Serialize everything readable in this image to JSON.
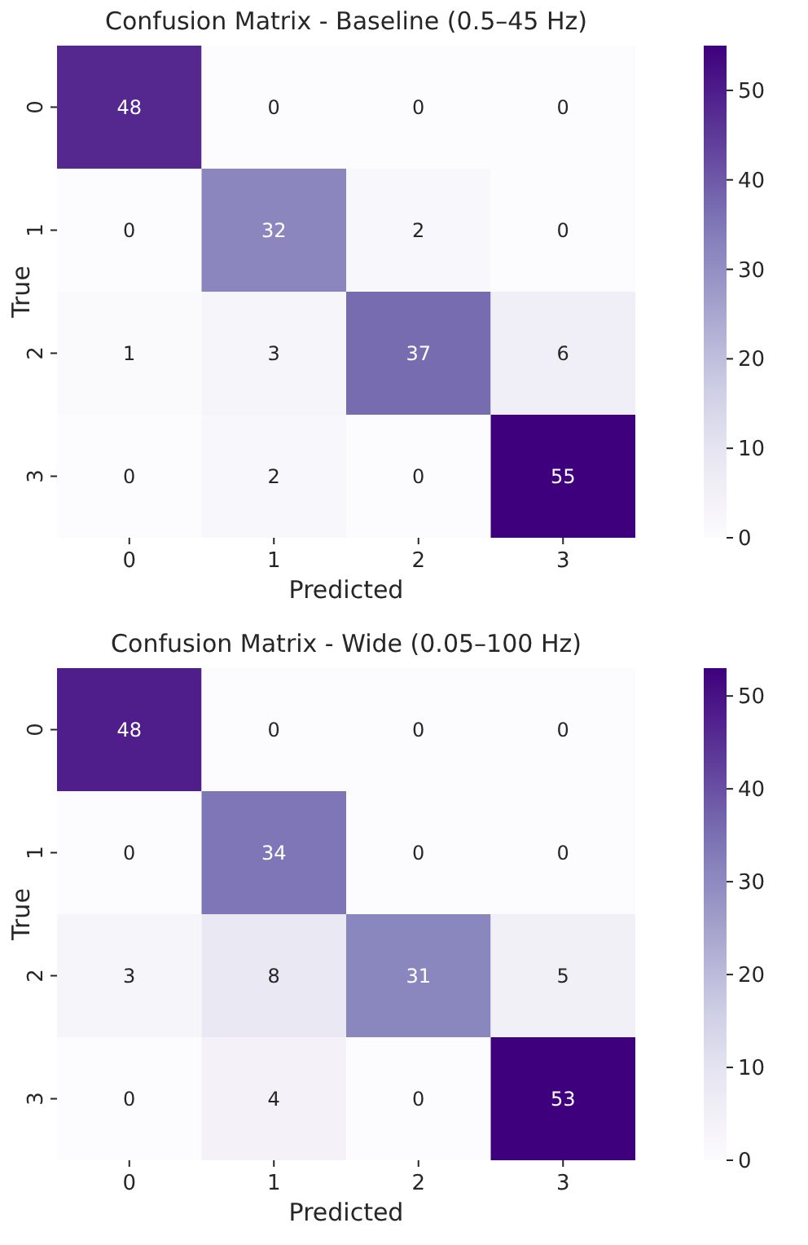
{
  "chart_data": [
    {
      "type": "heatmap",
      "title": "Confusion Matrix - Baseline (0.5–45 Hz)",
      "xlabel": "Predicted",
      "ylabel": "True",
      "categories": [
        "0",
        "1",
        "2",
        "3"
      ],
      "y_categories": [
        "0",
        "1",
        "2",
        "3"
      ],
      "cells": [
        [
          48,
          0,
          0,
          0
        ],
        [
          0,
          32,
          2,
          0
        ],
        [
          1,
          3,
          37,
          6
        ],
        [
          0,
          2,
          0,
          55
        ]
      ],
      "clim": [
        0,
        55
      ],
      "cticks": [
        0,
        10,
        20,
        30,
        40,
        50
      ],
      "data_labels": true
    },
    {
      "type": "heatmap",
      "title": "Confusion Matrix - Wide (0.05–100 Hz)",
      "xlabel": "Predicted",
      "ylabel": "True",
      "categories": [
        "0",
        "1",
        "2",
        "3"
      ],
      "y_categories": [
        "0",
        "1",
        "2",
        "3"
      ],
      "cells": [
        [
          48,
          0,
          0,
          0
        ],
        [
          0,
          34,
          0,
          0
        ],
        [
          3,
          8,
          31,
          5
        ],
        [
          0,
          4,
          0,
          53
        ]
      ],
      "clim": [
        0,
        53
      ],
      "cticks": [
        0,
        10,
        20,
        30,
        40,
        50
      ],
      "data_labels": true
    }
  ]
}
